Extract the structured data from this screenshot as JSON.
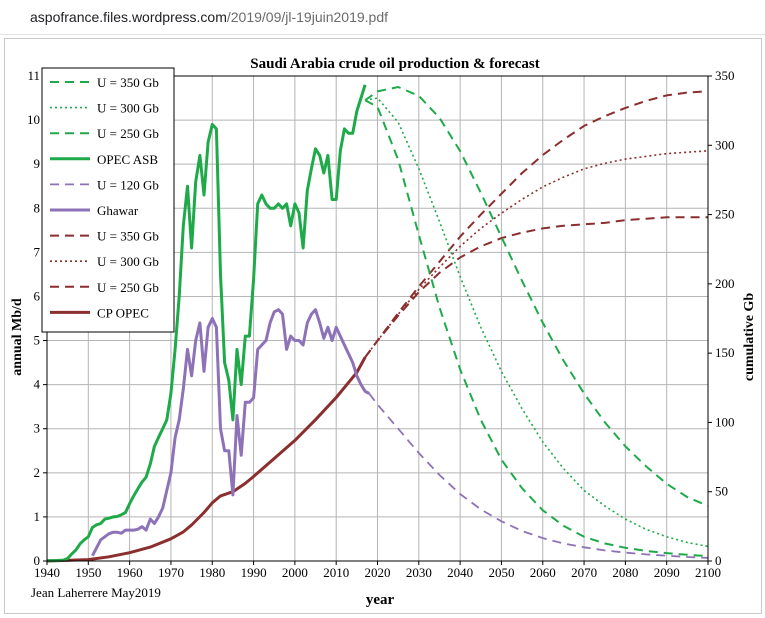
{
  "browser": {
    "url_host": "aspofrance.files.wordpress.com",
    "url_path": "/2019/09/jl-19juin2019.pdf"
  },
  "chart_data": {
    "type": "line",
    "title": "Saudi Arabia crude oil production & forecast",
    "xlabel": "year",
    "ylabel": "annual Mb/d",
    "y2label": "cumulative Gb",
    "credit": "Jean Laherrere May2019",
    "xlim": [
      1940,
      2100
    ],
    "ylim": [
      0,
      11
    ],
    "y2lim": [
      0,
      350
    ],
    "xticks": [
      1940,
      1950,
      1960,
      1970,
      1980,
      1990,
      2000,
      2010,
      2020,
      2030,
      2040,
      2050,
      2060,
      2070,
      2080,
      2090,
      2100
    ],
    "yticks": [
      0,
      1,
      2,
      3,
      4,
      5,
      6,
      7,
      8,
      9,
      10,
      11
    ],
    "y2ticks": [
      0,
      50,
      100,
      150,
      200,
      250,
      300,
      350
    ],
    "grid": true,
    "legend_position": "top-left",
    "series": [
      {
        "name": "U = 350 Gb",
        "axis": "left",
        "color": "#1faa4a",
        "style": "dashed",
        "width": 2,
        "x": [
          2017,
          2020,
          2025,
          2030,
          2035,
          2040,
          2045,
          2050,
          2055,
          2060,
          2065,
          2070,
          2075,
          2080,
          2085,
          2090,
          2095,
          2100
        ],
        "y": [
          10.45,
          10.65,
          10.75,
          10.55,
          10.05,
          9.3,
          8.35,
          7.35,
          6.35,
          5.4,
          4.55,
          3.8,
          3.15,
          2.6,
          2.15,
          1.75,
          1.45,
          1.25
        ]
      },
      {
        "name": "U = 300 Gb",
        "axis": "left",
        "color": "#1faa4a",
        "style": "dotted",
        "width": 1.6,
        "x": [
          2017,
          2020,
          2025,
          2030,
          2035,
          2040,
          2045,
          2050,
          2055,
          2060,
          2065,
          2070,
          2075,
          2080,
          2085,
          2090,
          2095,
          2100
        ],
        "y": [
          10.45,
          10.5,
          9.95,
          8.9,
          7.7,
          6.45,
          5.3,
          4.3,
          3.45,
          2.7,
          2.1,
          1.6,
          1.25,
          0.95,
          0.72,
          0.55,
          0.42,
          0.33
        ]
      },
      {
        "name": "U = 250 Gb",
        "axis": "left",
        "color": "#1faa4a",
        "style": "dashed",
        "width": 2,
        "x": [
          2017,
          2020,
          2025,
          2030,
          2035,
          2040,
          2045,
          2050,
          2055,
          2060,
          2065,
          2070,
          2075,
          2080,
          2085,
          2090,
          2095,
          2100
        ],
        "y": [
          10.45,
          10.3,
          9.1,
          7.4,
          5.75,
          4.35,
          3.2,
          2.3,
          1.65,
          1.15,
          0.8,
          0.55,
          0.4,
          0.3,
          0.23,
          0.18,
          0.14,
          0.11
        ]
      },
      {
        "name": "OPEC ASB",
        "axis": "left",
        "color": "#1faa4a",
        "style": "solid",
        "width": 3,
        "x": [
          1940,
          1942,
          1944,
          1945,
          1946,
          1947,
          1948,
          1949,
          1950,
          1951,
          1952,
          1953,
          1954,
          1955,
          1956,
          1957,
          1958,
          1959,
          1960,
          1961,
          1962,
          1963,
          1964,
          1965,
          1966,
          1967,
          1968,
          1969,
          1970,
          1971,
          1972,
          1973,
          1974,
          1975,
          1976,
          1977,
          1978,
          1979,
          1980,
          1981,
          1982,
          1983,
          1984,
          1985,
          1986,
          1987,
          1988,
          1989,
          1990,
          1991,
          1992,
          1993,
          1994,
          1995,
          1996,
          1997,
          1998,
          1999,
          2000,
          2001,
          2002,
          2003,
          2004,
          2005,
          2006,
          2007,
          2008,
          2009,
          2010,
          2011,
          2012,
          2013,
          2014,
          2015,
          2016,
          2017
        ],
        "y": [
          0.01,
          0.01,
          0.02,
          0.06,
          0.16,
          0.25,
          0.39,
          0.48,
          0.55,
          0.76,
          0.82,
          0.85,
          0.95,
          0.97,
          1.0,
          1.01,
          1.05,
          1.1,
          1.3,
          1.48,
          1.64,
          1.79,
          1.9,
          2.2,
          2.6,
          2.8,
          3.0,
          3.2,
          3.8,
          4.8,
          6.0,
          7.6,
          8.5,
          7.1,
          8.6,
          9.2,
          8.3,
          9.5,
          9.9,
          9.8,
          6.5,
          4.5,
          4.1,
          3.2,
          4.8,
          4.0,
          5.1,
          5.1,
          6.4,
          8.1,
          8.3,
          8.1,
          8.0,
          8.0,
          8.1,
          8.0,
          8.1,
          7.6,
          8.1,
          7.9,
          7.1,
          8.4,
          8.9,
          9.35,
          9.2,
          8.8,
          9.2,
          8.2,
          8.2,
          9.3,
          9.8,
          9.7,
          9.7,
          10.2,
          10.5,
          10.8
        ]
      },
      {
        "name": "U = 120 Gb",
        "axis": "left",
        "color": "#8e72b8",
        "style": "dashed",
        "width": 1.8,
        "x": [
          2018,
          2020,
          2025,
          2030,
          2035,
          2040,
          2045,
          2050,
          2055,
          2060,
          2065,
          2070,
          2075,
          2080,
          2085,
          2090,
          2095,
          2100
        ],
        "y": [
          3.8,
          3.55,
          3.0,
          2.45,
          1.95,
          1.52,
          1.17,
          0.9,
          0.68,
          0.52,
          0.4,
          0.31,
          0.24,
          0.19,
          0.15,
          0.12,
          0.09,
          0.07
        ]
      },
      {
        "name": "Ghawar",
        "axis": "left",
        "color": "#8e72b8",
        "style": "solid",
        "width": 3,
        "x": [
          1951,
          1952,
          1953,
          1954,
          1955,
          1956,
          1957,
          1958,
          1959,
          1960,
          1961,
          1962,
          1963,
          1964,
          1965,
          1966,
          1967,
          1968,
          1969,
          1970,
          1971,
          1972,
          1973,
          1974,
          1975,
          1976,
          1977,
          1978,
          1979,
          1980,
          1981,
          1982,
          1983,
          1984,
          1985,
          1986,
          1987,
          1988,
          1989,
          1990,
          1991,
          1992,
          1993,
          1994,
          1995,
          1996,
          1997,
          1998,
          1999,
          2000,
          2001,
          2002,
          2003,
          2004,
          2005,
          2006,
          2007,
          2008,
          2009,
          2010,
          2011,
          2012,
          2013,
          2014,
          2015,
          2016,
          2017,
          2018
        ],
        "y": [
          0.12,
          0.3,
          0.48,
          0.55,
          0.62,
          0.65,
          0.65,
          0.63,
          0.7,
          0.7,
          0.7,
          0.72,
          0.78,
          0.7,
          0.95,
          0.85,
          1.0,
          1.2,
          1.6,
          2.0,
          2.8,
          3.2,
          3.9,
          4.8,
          4.2,
          5.0,
          5.4,
          4.3,
          5.3,
          5.5,
          5.3,
          3.0,
          2.5,
          2.5,
          1.5,
          3.3,
          2.4,
          3.6,
          3.6,
          3.7,
          4.8,
          4.9,
          5.0,
          5.4,
          5.65,
          5.7,
          5.6,
          4.8,
          5.1,
          5.0,
          5.0,
          4.9,
          5.4,
          5.6,
          5.7,
          5.4,
          5.05,
          5.3,
          5.0,
          5.3,
          5.1,
          4.9,
          4.7,
          4.5,
          4.2,
          4.0,
          3.85,
          3.8
        ]
      },
      {
        "name": "U = 350 Gb",
        "axis": "right",
        "color": "#8b2e2e",
        "style": "dashed",
        "width": 2,
        "x": [
          2017,
          2020,
          2025,
          2030,
          2035,
          2040,
          2045,
          2050,
          2055,
          2060,
          2065,
          2070,
          2075,
          2080,
          2085,
          2090,
          2095,
          2100
        ],
        "y": [
          147,
          159,
          179,
          198,
          216,
          234,
          250,
          265,
          280,
          293,
          304,
          314,
          321,
          327,
          332,
          336,
          338,
          339
        ]
      },
      {
        "name": "U = 300 Gb",
        "axis": "right",
        "color": "#8b2e2e",
        "style": "dotted",
        "width": 1.6,
        "x": [
          2017,
          2020,
          2025,
          2030,
          2035,
          2040,
          2045,
          2050,
          2055,
          2060,
          2065,
          2070,
          2075,
          2080,
          2085,
          2090,
          2095,
          2100
        ],
        "y": [
          147,
          159,
          178,
          196,
          212,
          227,
          240,
          251,
          261,
          270,
          277,
          283,
          287,
          290,
          292,
          294,
          295,
          296
        ]
      },
      {
        "name": "U = 250 Gb",
        "axis": "right",
        "color": "#8b2e2e",
        "style": "dashed",
        "width": 2,
        "x": [
          2017,
          2020,
          2025,
          2030,
          2035,
          2040,
          2045,
          2050,
          2055,
          2060,
          2065,
          2070,
          2075,
          2080,
          2085,
          2090,
          2095,
          2100
        ],
        "y": [
          147,
          159,
          177,
          194,
          208,
          219,
          227,
          233,
          237,
          240,
          242,
          243,
          244,
          246,
          247,
          248,
          248,
          248
        ]
      },
      {
        "name": "CP OPEC",
        "axis": "right",
        "color": "#8b2e2e",
        "style": "solid",
        "width": 3,
        "x": [
          1940,
          1950,
          1955,
          1960,
          1965,
          1970,
          1973,
          1975,
          1978,
          1980,
          1982,
          1985,
          1988,
          1990,
          1995,
          2000,
          2005,
          2010,
          2015,
          2017
        ],
        "y": [
          0,
          1,
          3,
          6,
          10,
          16,
          21,
          26,
          35,
          42,
          47,
          50,
          56,
          61,
          74,
          87,
          102,
          118,
          136,
          147
        ]
      }
    ]
  }
}
